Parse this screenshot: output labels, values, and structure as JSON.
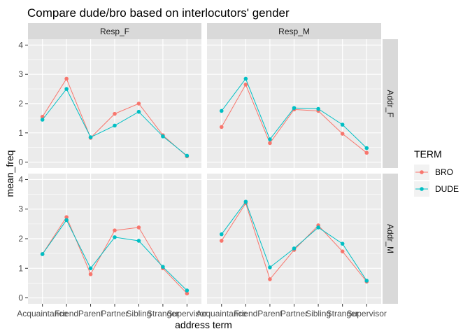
{
  "chart_data": {
    "type": "line",
    "title": "Compare dude/bro based on interlocutors' gender",
    "xlabel": "address term",
    "ylabel": "mean_freq",
    "categories": [
      "Acquaintance",
      "Friend",
      "Parent",
      "Partner",
      "Sibling",
      "Stranger",
      "Supervisor"
    ],
    "ylim": [
      -0.2,
      4.2
    ],
    "yticks": [
      0,
      1,
      2,
      3,
      4
    ],
    "grid": true,
    "legend": {
      "title": "TERM",
      "placement": "right",
      "entries": [
        {
          "name": "BRO",
          "color": "#F8766D"
        },
        {
          "name": "DUDE",
          "color": "#00BFC4"
        }
      ]
    },
    "facet_columns": [
      "Resp_F",
      "Resp_M"
    ],
    "facet_rows": [
      "Addr_F",
      "Addr_M"
    ],
    "panels": [
      {
        "col": "Resp_F",
        "row": "Addr_F",
        "series": [
          {
            "name": "BRO",
            "values": [
              1.55,
              2.85,
              0.83,
              1.65,
              2.0,
              0.92,
              0.2
            ]
          },
          {
            "name": "DUDE",
            "values": [
              1.45,
              2.5,
              0.85,
              1.25,
              1.72,
              0.88,
              0.22
            ]
          }
        ]
      },
      {
        "col": "Resp_M",
        "row": "Addr_F",
        "series": [
          {
            "name": "BRO",
            "values": [
              1.2,
              2.65,
              0.65,
              1.8,
              1.75,
              0.97,
              0.32
            ]
          },
          {
            "name": "DUDE",
            "values": [
              1.75,
              2.85,
              0.78,
              1.85,
              1.82,
              1.28,
              0.48
            ]
          }
        ]
      },
      {
        "col": "Resp_F",
        "row": "Addr_M",
        "series": [
          {
            "name": "BRO",
            "values": [
              1.48,
              2.73,
              0.8,
              2.28,
              2.38,
              1.0,
              0.15
            ]
          },
          {
            "name": "DUDE",
            "values": [
              1.48,
              2.63,
              1.0,
              2.05,
              1.93,
              1.05,
              0.25
            ]
          }
        ]
      },
      {
        "col": "Resp_M",
        "row": "Addr_M",
        "series": [
          {
            "name": "BRO",
            "values": [
              1.93,
              3.2,
              0.63,
              1.62,
              2.45,
              1.57,
              0.55
            ]
          },
          {
            "name": "DUDE",
            "values": [
              2.15,
              3.25,
              1.03,
              1.67,
              2.38,
              1.83,
              0.58
            ]
          }
        ]
      }
    ]
  },
  "colors": {
    "panel_bg": "#EBEBEB",
    "strip_bg": "#D9D9D9",
    "grid": "#FFFFFF"
  }
}
